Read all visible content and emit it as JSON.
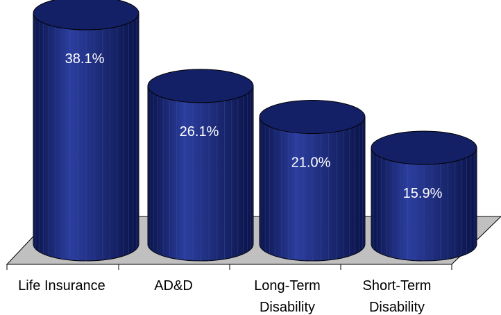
{
  "chart_data": {
    "type": "bar",
    "categories": [
      [
        "Life Insurance"
      ],
      [
        "AD&D"
      ],
      [
        "Long-Term",
        "Disability"
      ],
      [
        "Short-Term",
        "Disability"
      ]
    ],
    "values": [
      38.1,
      26.1,
      21.0,
      15.9
    ],
    "data_labels": [
      "38.1%",
      "26.1%",
      "21.0%",
      "15.9%"
    ],
    "title": "",
    "xlabel": "",
    "ylabel": "",
    "ylim": [
      0,
      40
    ],
    "grid": false,
    "style": "3d-cylinder",
    "colors": {
      "bar_fill": "#1b2a7b",
      "bar_dark": "#0a1346",
      "bar_light": "#2c3e9e",
      "bar_top": "#142066",
      "floor_fill": "#c0c0c0",
      "data_label": "#ffffff",
      "axis_text": "#000000"
    }
  }
}
